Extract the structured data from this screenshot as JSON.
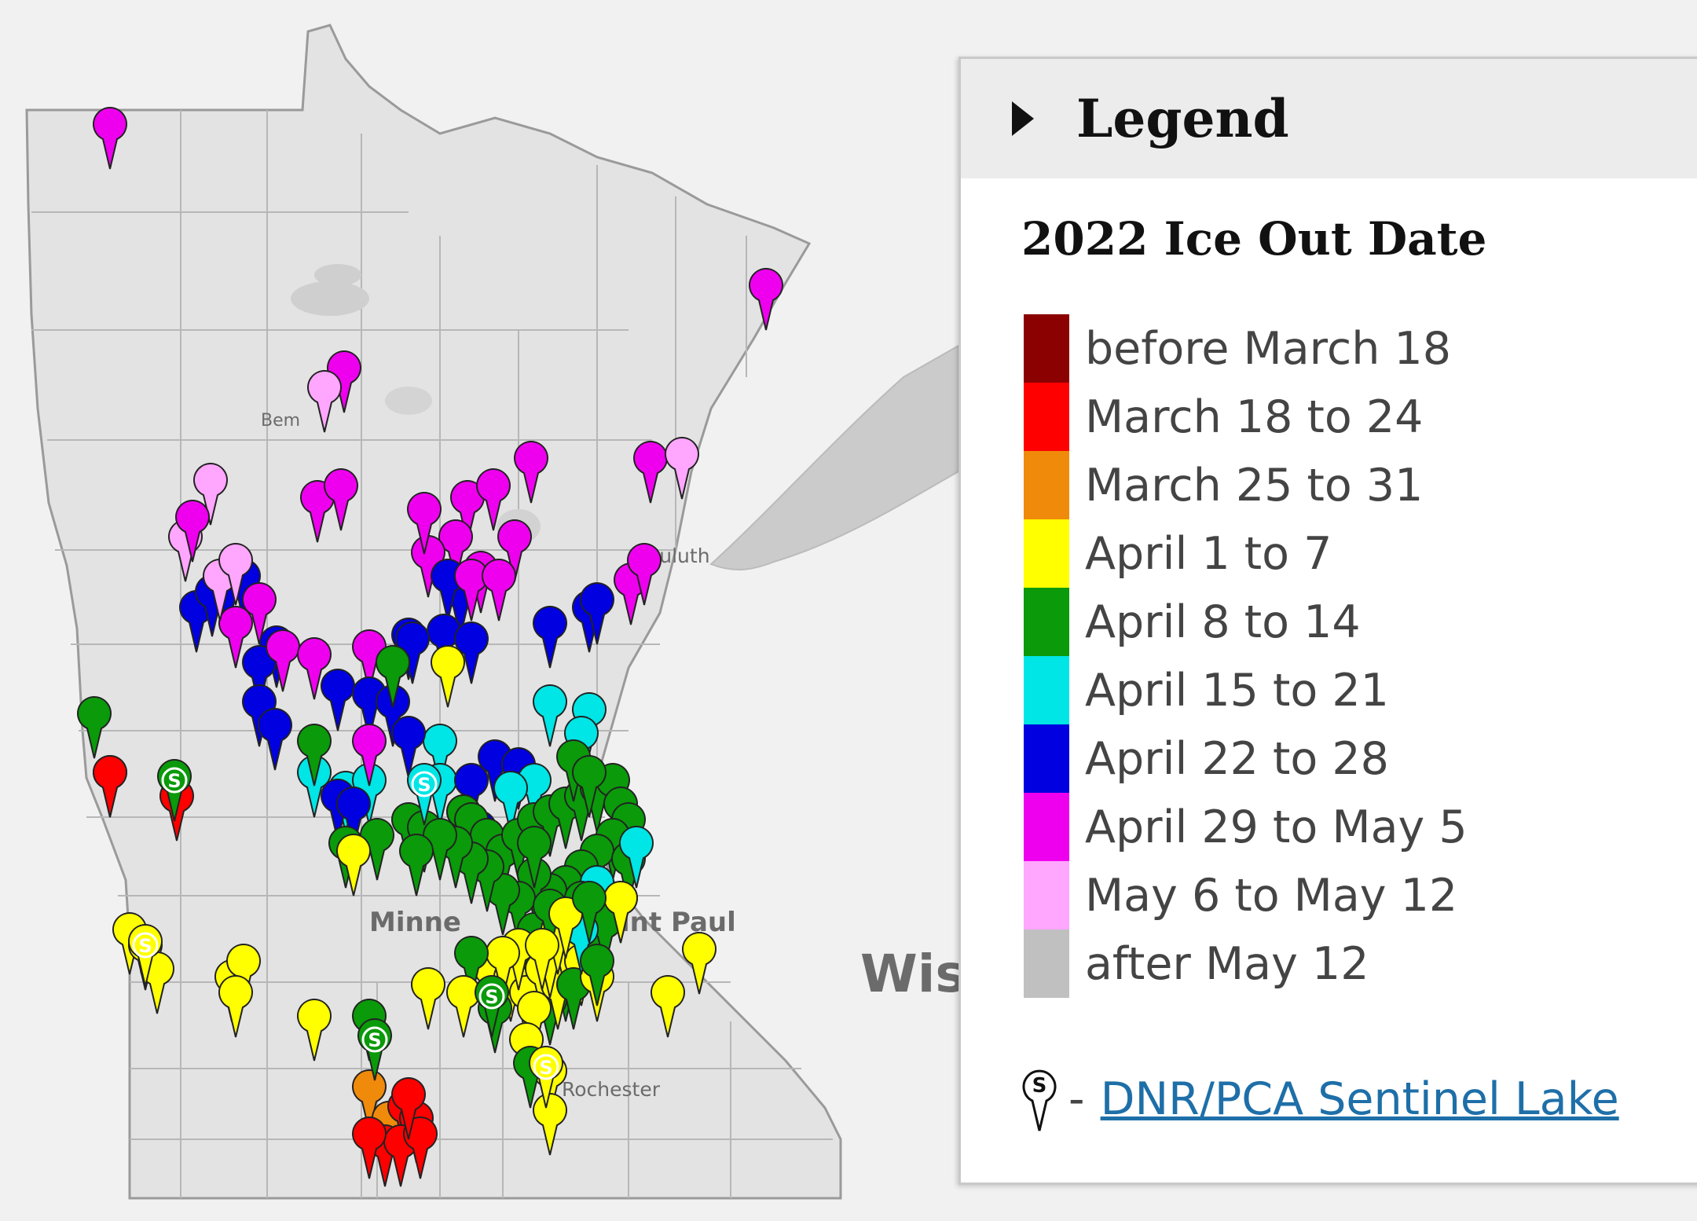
{
  "map": {
    "city_labels": [
      {
        "name": "Bem"
      },
      {
        "name": "Duluth"
      },
      {
        "name": "Minne"
      },
      {
        "name": "int Paul"
      },
      {
        "name": "Rochester"
      },
      {
        "name": "Wis"
      }
    ],
    "markers": [
      {
        "cat": 7
      },
      {
        "cat": 7
      },
      {
        "cat": 7
      },
      {
        "cat": 8
      },
      {
        "cat": 7
      },
      {
        "cat": 8
      },
      {
        "cat": 7
      },
      {
        "cat": 7
      },
      {
        "cat": 8
      },
      {
        "cat": 7
      },
      {
        "cat": 7
      },
      {
        "cat": 8
      },
      {
        "cat": 7
      },
      {
        "cat": 7
      },
      {
        "cat": 7
      },
      {
        "cat": 7
      },
      {
        "cat": 7
      },
      {
        "cat": 7
      },
      {
        "cat": 7
      },
      {
        "cat": 7
      },
      {
        "cat": 6
      },
      {
        "cat": 6
      },
      {
        "cat": 7
      },
      {
        "cat": 7
      },
      {
        "cat": 7
      },
      {
        "cat": 6
      },
      {
        "cat": 6
      },
      {
        "cat": 6
      },
      {
        "cat": 6
      },
      {
        "cat": 7
      },
      {
        "cat": 7
      },
      {
        "cat": 8
      },
      {
        "cat": 8
      },
      {
        "cat": 6
      },
      {
        "cat": 6
      },
      {
        "cat": 7
      },
      {
        "cat": 7
      },
      {
        "cat": 7
      },
      {
        "cat": 6
      },
      {
        "cat": 6
      },
      {
        "cat": 6
      },
      {
        "cat": 6
      },
      {
        "cat": 6
      },
      {
        "cat": 6
      },
      {
        "cat": 6
      },
      {
        "cat": 6
      },
      {
        "cat": 6
      },
      {
        "cat": 6
      },
      {
        "cat": 6
      },
      {
        "cat": 5
      },
      {
        "cat": 5
      },
      {
        "cat": 5
      },
      {
        "cat": 6
      },
      {
        "cat": 6
      },
      {
        "cat": 5
      },
      {
        "cat": 6
      },
      {
        "cat": 5
      },
      {
        "cat": 5
      },
      {
        "cat": 5
      },
      {
        "cat": 6
      },
      {
        "cat": 6
      },
      {
        "cat": 6
      },
      {
        "cat": 6
      },
      {
        "cat": 6
      },
      {
        "cat": 5
      },
      {
        "cat": 5
      },
      {
        "cat": 5
      },
      {
        "cat": 6
      },
      {
        "cat": 7
      },
      {
        "cat": 4
      },
      {
        "cat": 4
      },
      {
        "cat": 4
      },
      {
        "cat": 4
      },
      {
        "cat": 4
      },
      {
        "cat": 4
      },
      {
        "cat": 4
      },
      {
        "cat": 4
      },
      {
        "cat": 4
      },
      {
        "cat": 4
      },
      {
        "cat": 4
      },
      {
        "cat": 4
      },
      {
        "cat": 4
      },
      {
        "cat": 4
      },
      {
        "cat": 4
      },
      {
        "cat": 4
      },
      {
        "cat": 4
      },
      {
        "cat": 4
      },
      {
        "cat": 4
      },
      {
        "cat": 4
      },
      {
        "cat": 4
      },
      {
        "cat": 4
      },
      {
        "cat": 4
      },
      {
        "cat": 4
      },
      {
        "cat": 4
      },
      {
        "cat": 4
      },
      {
        "cat": 4
      },
      {
        "cat": 4
      },
      {
        "cat": 4
      },
      {
        "cat": 4
      },
      {
        "cat": 4
      },
      {
        "cat": 4
      },
      {
        "cat": 5
      },
      {
        "cat": 5
      },
      {
        "cat": 4
      },
      {
        "cat": 4
      },
      {
        "cat": 4
      },
      {
        "cat": 4
      },
      {
        "cat": 4
      },
      {
        "cat": 4
      },
      {
        "cat": 4
      },
      {
        "cat": 4
      },
      {
        "cat": 4
      },
      {
        "cat": 4
      },
      {
        "cat": 4
      },
      {
        "cat": 4
      },
      {
        "cat": 4
      },
      {
        "cat": 4
      },
      {
        "cat": 3
      },
      {
        "cat": 3
      },
      {
        "cat": 3
      },
      {
        "cat": 3
      },
      {
        "cat": 3
      },
      {
        "cat": 3
      },
      {
        "cat": 3
      },
      {
        "cat": 3
      },
      {
        "cat": 3
      },
      {
        "cat": 3
      },
      {
        "cat": 3
      },
      {
        "cat": 3
      },
      {
        "cat": 3
      },
      {
        "cat": 3
      },
      {
        "cat": 3
      },
      {
        "cat": 3
      },
      {
        "cat": 3
      },
      {
        "cat": 3
      },
      {
        "cat": 3
      },
      {
        "cat": 3
      },
      {
        "cat": 3
      },
      {
        "cat": 3
      },
      {
        "cat": 3
      },
      {
        "cat": 3
      },
      {
        "cat": 3
      },
      {
        "cat": 2
      },
      {
        "cat": 2
      },
      {
        "cat": 1
      },
      {
        "cat": 1
      },
      {
        "cat": 1
      },
      {
        "cat": 1
      },
      {
        "cat": 1
      },
      {
        "cat": 1
      },
      {
        "cat": 1
      },
      {
        "cat": 1
      },
      {
        "cat": 1
      },
      {
        "cat": 4
      },
      {
        "cat": 4
      },
      {
        "cat": 4
      },
      {
        "cat": 4
      },
      {
        "cat": 3
      },
      {
        "cat": 3
      },
      {
        "cat": 4
      },
      {
        "cat": 3
      },
      {
        "cat": 4
      },
      {
        "cat": 3
      },
      {
        "cat": 4
      },
      {
        "cat": 3
      },
      {
        "cat": 3
      },
      {
        "cat": 5
      },
      {
        "cat": 3
      },
      {
        "cat": 4
      },
      {
        "cat": 4
      },
      {
        "cat": 4
      },
      {
        "cat": 4
      }
    ],
    "sentinel_marker_glyph": "S"
  },
  "legend": {
    "title": "Legend",
    "subtitle": "2022 Ice Out Date",
    "items": [
      {
        "label": "before March 18",
        "color": "#8b0000"
      },
      {
        "label": "March 18 to 24",
        "color": "#ff0000"
      },
      {
        "label": "March 25 to 31",
        "color": "#f08a0a"
      },
      {
        "label": "April 1 to 7",
        "color": "#ffff00"
      },
      {
        "label": "April 8 to 14",
        "color": "#0a9a0a"
      },
      {
        "label": "April 15 to 21",
        "color": "#00e5e5"
      },
      {
        "label": "April 22 to 28",
        "color": "#0000e0"
      },
      {
        "label": "April 29 to May 5",
        "color": "#ee00ee"
      },
      {
        "label": "May 6 to May 12",
        "color": "#ffa6ff"
      },
      {
        "label": "after May 12",
        "color": "#c0c0c0"
      }
    ],
    "sentinel_icon": "S",
    "sentinel_dash": "-",
    "sentinel_link_text": "DNR/PCA Sentinel Lake"
  }
}
